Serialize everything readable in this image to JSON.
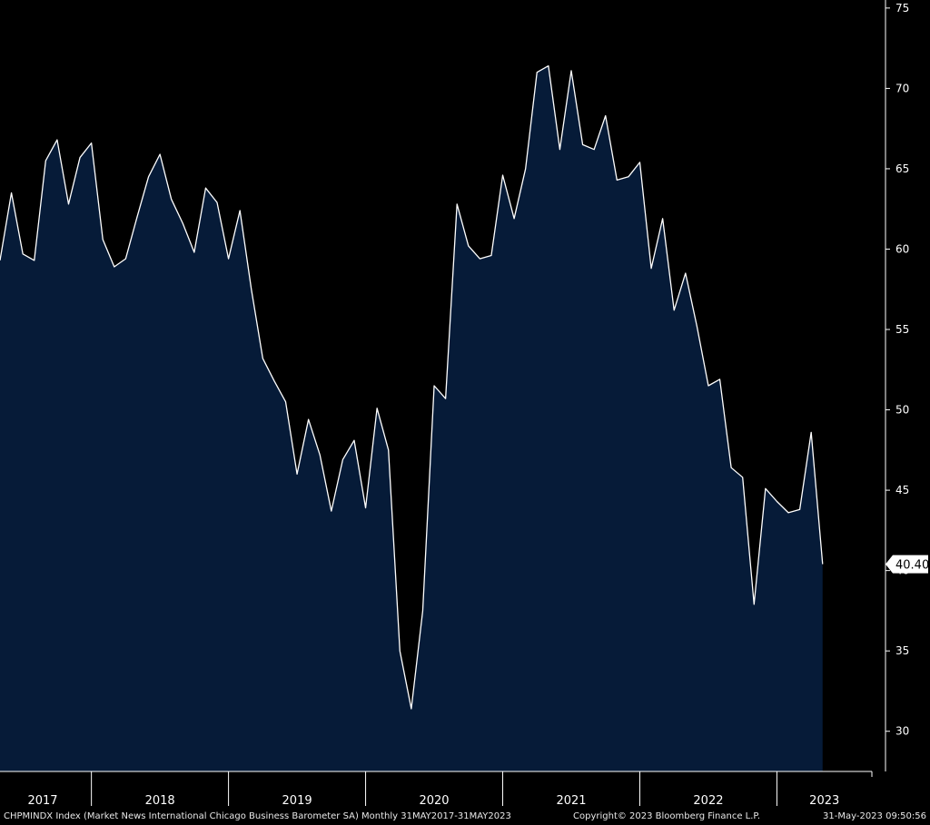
{
  "footer": {
    "description": "CHPMINDX Index (Market News International Chicago Business Barometer SA)  Monthly 31MAY2017-31MAY2023",
    "copyright": "Copyright© 2023 Bloomberg Finance L.P.",
    "timestamp": "31-May-2023 09:50:56"
  },
  "chart_data": {
    "type": "area",
    "ylim": [
      27.5,
      75.5
    ],
    "yticks": [
      30,
      35,
      40,
      45,
      50,
      55,
      60,
      65,
      70,
      75
    ],
    "years": [
      "2017",
      "2018",
      "2019",
      "2020",
      "2021",
      "2022",
      "2023"
    ],
    "last_value_label": "40.40",
    "colors": {
      "background": "#000000",
      "fill": "#061b38",
      "line": "#ffffff",
      "axis": "#ffffff"
    },
    "series": [
      {
        "start": "2017-05",
        "frequency": "monthly",
        "values": [
          59.3,
          63.5,
          59.7,
          59.3,
          65.5,
          66.8,
          62.8,
          65.7,
          66.6,
          60.6,
          58.9,
          59.4,
          62.0,
          64.5,
          65.9,
          63.1,
          61.6,
          59.8,
          63.8,
          62.9,
          59.4,
          62.4,
          57.5,
          53.2,
          51.8,
          50.5,
          46.0,
          49.4,
          47.2,
          43.7,
          46.9,
          48.1,
          43.9,
          50.1,
          47.5,
          35.0,
          31.4,
          37.5,
          51.5,
          50.7,
          62.8,
          60.2,
          59.4,
          59.6,
          64.6,
          61.9,
          65.0,
          71.0,
          71.4,
          66.2,
          71.1,
          66.5,
          66.2,
          68.3,
          64.3,
          64.5,
          65.4,
          58.8,
          61.9,
          56.2,
          58.5,
          55.2,
          51.5,
          51.9,
          46.4,
          45.8,
          37.9,
          45.1,
          44.3,
          43.6,
          43.8,
          48.6,
          40.4
        ]
      }
    ]
  }
}
